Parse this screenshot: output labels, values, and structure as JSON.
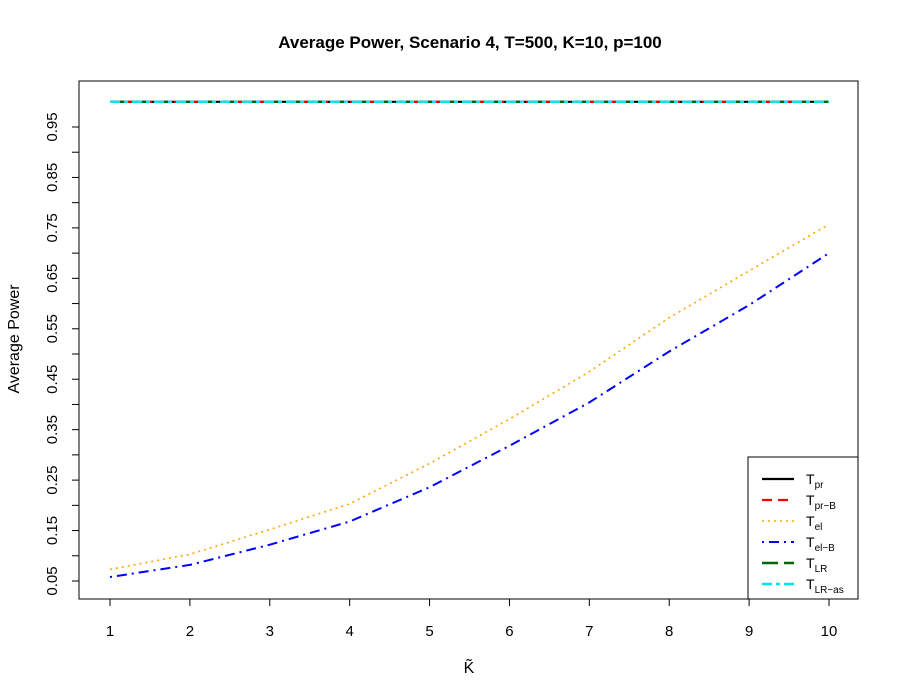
{
  "chart_data": {
    "type": "line",
    "title": "Average Power, Scenario 4, T=500, K=10, p=100",
    "xlabel": "K̃",
    "ylabel": "Average Power",
    "xlim": [
      1,
      10
    ],
    "ylim": [
      0.05,
      1.0
    ],
    "x": [
      1,
      2,
      3,
      4,
      5,
      6,
      7,
      8,
      9,
      10
    ],
    "x_ticks": [
      "1",
      "2",
      "3",
      "4",
      "5",
      "6",
      "7",
      "8",
      "9",
      "10"
    ],
    "y_ticks": [
      "0.05",
      "0.15",
      "0.25",
      "0.35",
      "0.45",
      "0.55",
      "0.65",
      "0.75",
      "0.85",
      "0.95"
    ],
    "grid": false,
    "legend_position": "bottom-right",
    "series": [
      {
        "name": "T_pr",
        "label_main": "T",
        "label_sub": "pr",
        "color": "#000000",
        "dash": "solid",
        "values": [
          1,
          1,
          1,
          1,
          1,
          1,
          1,
          1,
          1,
          1
        ]
      },
      {
        "name": "T_pr-B",
        "label_main": "T",
        "label_sub": "pr−B",
        "color": "#ff0000",
        "dash": "dashed",
        "values": [
          1,
          1,
          1,
          1,
          1,
          1,
          1,
          1,
          1,
          1
        ]
      },
      {
        "name": "T_el",
        "label_main": "T",
        "label_sub": "el",
        "color": "#ffa500",
        "dash": "dotted",
        "values": [
          0.073,
          0.103,
          0.152,
          0.203,
          0.283,
          0.371,
          0.465,
          0.572,
          0.665,
          0.757
        ]
      },
      {
        "name": "T_el-B",
        "label_main": "T",
        "label_sub": "el−B",
        "color": "#0000ff",
        "dash": "dotdash",
        "values": [
          0.058,
          0.082,
          0.122,
          0.168,
          0.236,
          0.318,
          0.404,
          0.505,
          0.597,
          0.7
        ]
      },
      {
        "name": "T_LR",
        "label_main": "T",
        "label_sub": "LR",
        "color": "#006400",
        "dash": "longdash",
        "values": [
          1,
          1,
          1,
          1,
          1,
          1,
          1,
          1,
          1,
          1
        ]
      },
      {
        "name": "T_LR-as",
        "label_main": "T",
        "label_sub": "LR−as",
        "color": "#00e5ee",
        "dash": "twodash",
        "values": [
          1,
          1,
          1,
          1,
          1,
          1,
          1,
          1,
          1,
          1
        ]
      }
    ]
  }
}
